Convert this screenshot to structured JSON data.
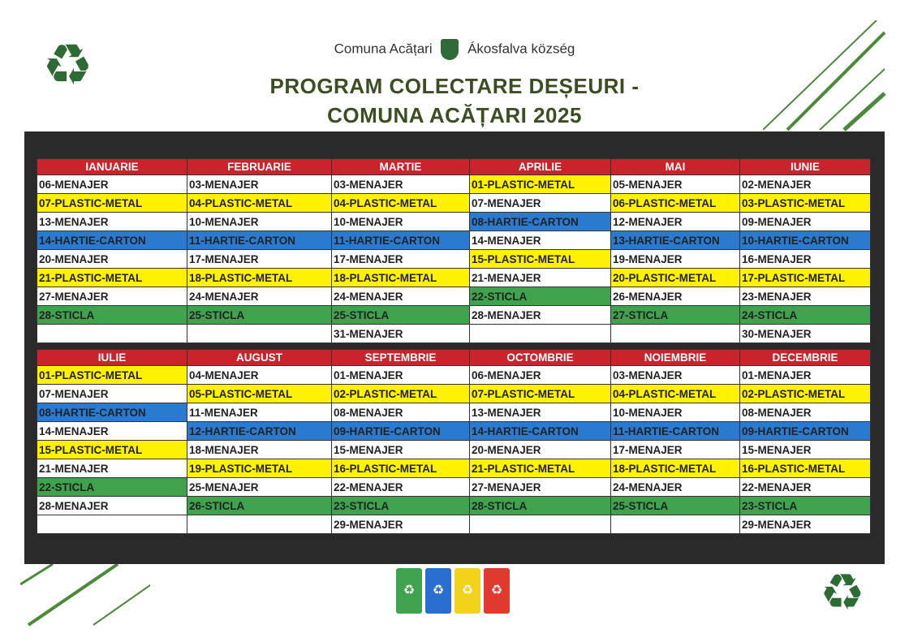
{
  "header": {
    "brand_left": "Comuna Acățari",
    "brand_right": "Ákosfalva község",
    "title_line1": "PROGRAM COLECTARE DEȘEURI -",
    "title_line2": "COMUNA ACĂȚARI  2025"
  },
  "icons": {
    "corner_top_left": "recycle-icon",
    "corner_bottom_right": "recycle-icon",
    "bins": [
      "green-bin-icon",
      "blue-bin-icon",
      "yellow-bin-icon",
      "red-bin-icon"
    ]
  },
  "colors": {
    "header": "#c9232c",
    "PLASTIC-METAL": "#fff200",
    "HARTIE-CARTON": "#2a7ad0",
    "STICLA": "#3fa34d",
    "MENAJER": "#ffffff"
  },
  "halves": [
    {
      "months": [
        {
          "name": "IANUARIE",
          "entries": [
            "06-MENAJER",
            "07-PLASTIC-METAL",
            "13-MENAJER",
            "14-HARTIE-CARTON",
            "20-MENAJER",
            "21-PLASTIC-METAL",
            "27-MENAJER",
            "28-STICLA",
            ""
          ]
        },
        {
          "name": "FEBRUARIE",
          "entries": [
            "03-MENAJER",
            "04-PLASTIC-METAL",
            "10-MENAJER",
            "11-HARTIE-CARTON",
            "17-MENAJER",
            "18-PLASTIC-METAL",
            "24-MENAJER",
            "25-STICLA",
            ""
          ]
        },
        {
          "name": "MARTIE",
          "entries": [
            "03-MENAJER",
            "04-PLASTIC-METAL",
            "10-MENAJER",
            "11-HARTIE-CARTON",
            "17-MENAJER",
            "18-PLASTIC-METAL",
            "24-MENAJER",
            "25-STICLA",
            "31-MENAJER"
          ]
        },
        {
          "name": "APRILIE",
          "entries": [
            "01-PLASTIC-METAL",
            "07-MENAJER",
            "08-HARTIE-CARTON",
            "14-MENAJER",
            "15-PLASTIC-METAL",
            "21-MENAJER",
            "22-STICLA",
            "28-MENAJER",
            ""
          ]
        },
        {
          "name": "MAI",
          "entries": [
            "05-MENAJER",
            "06-PLASTIC-METAL",
            "12-MENAJER",
            "13-HARTIE-CARTON",
            "19-MENAJER",
            "20-PLASTIC-METAL",
            "26-MENAJER",
            "27-STICLA",
            ""
          ]
        },
        {
          "name": "IUNIE",
          "entries": [
            "02-MENAJER",
            "03-PLASTIC-METAL",
            "09-MENAJER",
            "10-HARTIE-CARTON",
            "16-MENAJER",
            "17-PLASTIC-METAL",
            "23-MENAJER",
            "24-STICLA",
            "30-MENAJER"
          ]
        }
      ]
    },
    {
      "months": [
        {
          "name": "IULIE",
          "entries": [
            "01-PLASTIC-METAL",
            "07-MENAJER",
            "08-HARTIE-CARTON",
            "14-MENAJER",
            "15-PLASTIC-METAL",
            "21-MENAJER",
            "22-STICLA",
            "28-MENAJER",
            ""
          ]
        },
        {
          "name": "AUGUST",
          "entries": [
            "04-MENAJER",
            "05-PLASTIC-METAL",
            "11-MENAJER",
            "12-HARTIE-CARTON",
            "18-MENAJER",
            "19-PLASTIC-METAL",
            "25-MENAJER",
            "26-STICLA",
            ""
          ]
        },
        {
          "name": "SEPTEMBRIE",
          "entries": [
            "01-MENAJER",
            "02-PLASTIC-METAL",
            "08-MENAJER",
            "09-HARTIE-CARTON",
            "15-MENAJER",
            "16-PLASTIC-METAL",
            "22-MENAJER",
            "23-STICLA",
            "29-MENAJER"
          ]
        },
        {
          "name": "OCTOMBRIE",
          "entries": [
            "06-MENAJER",
            "07-PLASTIC-METAL",
            "13-MENAJER",
            "14-HARTIE-CARTON",
            "20-MENAJER",
            "21-PLASTIC-METAL",
            "27-MENAJER",
            "28-STICLA",
            ""
          ]
        },
        {
          "name": "NOIEMBRIE",
          "entries": [
            "03-MENAJER",
            "04-PLASTIC-METAL",
            "10-MENAJER",
            "11-HARTIE-CARTON",
            "17-MENAJER",
            "18-PLASTIC-METAL",
            "24-MENAJER",
            "25-STICLA",
            ""
          ]
        },
        {
          "name": "DECEMBRIE",
          "entries": [
            "01-MENAJER",
            "02-PLASTIC-METAL",
            "08-MENAJER",
            "09-HARTIE-CARTON",
            "15-MENAJER",
            "16-PLASTIC-METAL",
            "22-MENAJER",
            "23-STICLA",
            "29-MENAJER"
          ]
        }
      ]
    }
  ]
}
